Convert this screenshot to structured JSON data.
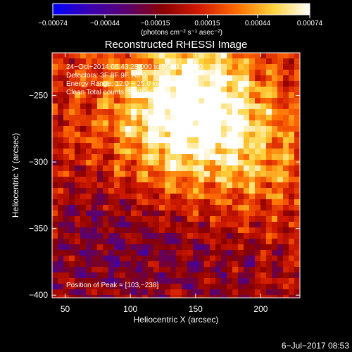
{
  "chart_data": {
    "type": "heatmap",
    "title": "Reconstructed RHESSI Image",
    "xlabel": "Heliocentric X (arcsec)",
    "ylabel": "Heliocentric Y (arcsec)",
    "xlim": [
      40,
      230
    ],
    "ylim": [
      -402,
      -218
    ],
    "x_ticks": [
      50,
      100,
      150,
      200
    ],
    "y_ticks": [
      -250,
      -300,
      -350,
      -400
    ],
    "x_tick_labels": [
      "50",
      "100",
      "150",
      "200"
    ],
    "y_tick_labels": [
      "−250",
      "−300",
      "−350",
      "−400"
    ],
    "colorbar": {
      "range": [
        -0.00074,
        0.00074
      ],
      "tick_values": [
        -0.00074,
        -0.00044,
        -0.00015,
        0.00015,
        0.00044,
        0.00074
      ],
      "tick_labels": [
        "−0.00074",
        "−0.00044",
        "−0.00015",
        "0.00015",
        "0.00044",
        "0.00074"
      ],
      "units_text": "(photons cm⁻² s⁻¹ asec⁻²)",
      "stops": [
        "#0000ff",
        "#3a00b0",
        "#5a0070",
        "#8a0000",
        "#d11a00",
        "#ff6a00",
        "#ffd23a",
        "#ffffff"
      ]
    },
    "annotations": [
      "24−Oct−2014 05:43:28.000 to 05:53:28.000",
      "Detectors: 3F 8F 9F, Att 0",
      "Energy Range: 12.0 − 25.0 keV",
      "Clean     Total counts: 5.90E+03"
    ],
    "peak_label": "Position of Peak = [103,−238]",
    "peak_position": [
      103,
      -238
    ],
    "timestamp": "6−Jul−2017 08:53",
    "background_color": "#000000"
  }
}
